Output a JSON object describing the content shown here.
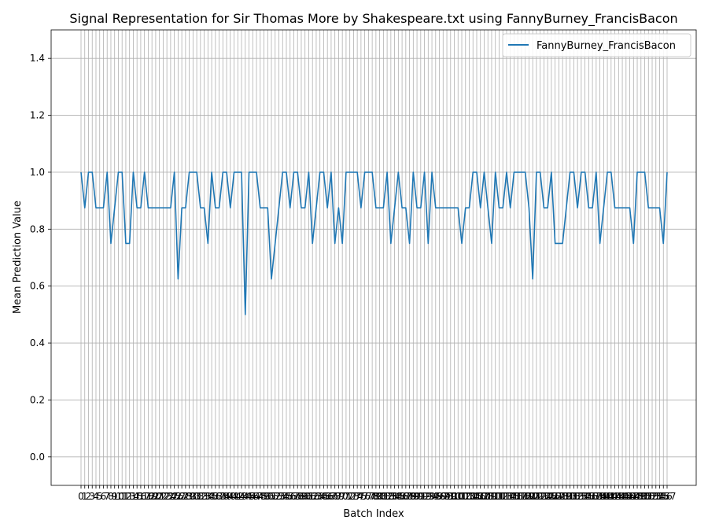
{
  "chart_data": {
    "type": "line",
    "title": "Signal Representation for Sir Thomas More by Shakespeare.txt using FannyBurney_FrancisBacon",
    "xlabel": "Batch Index",
    "ylabel": "Mean Prediction Value",
    "ylim": [
      -0.1,
      1.5
    ],
    "y_ticks": [
      0.0,
      0.2,
      0.4,
      0.6,
      0.8,
      1.0,
      1.2,
      1.4
    ],
    "y_tick_labels": [
      "0.0",
      "0.2",
      "0.4",
      "0.6",
      "0.8",
      "1.0",
      "1.2",
      "1.4"
    ],
    "x_range": [
      0,
      153
    ],
    "grid": true,
    "legend": "upper-right",
    "color": "#1f77b4",
    "series": [
      {
        "name": "FannyBurney_FrancisBacon",
        "values": [
          1.0,
          0.875,
          1.0,
          1.0,
          0.875,
          0.875,
          0.875,
          1.0,
          0.75,
          0.875,
          1.0,
          1.0,
          0.75,
          0.75,
          1.0,
          0.875,
          0.875,
          1.0,
          0.875,
          0.875,
          0.875,
          0.875,
          0.875,
          0.875,
          0.875,
          1.0,
          0.625,
          0.875,
          0.875,
          1.0,
          1.0,
          1.0,
          0.875,
          0.875,
          0.75,
          1.0,
          0.875,
          0.875,
          1.0,
          1.0,
          0.875,
          1.0,
          1.0,
          1.0,
          0.5,
          1.0,
          1.0,
          1.0,
          0.875,
          0.875,
          0.875,
          0.625,
          0.75,
          0.875,
          1.0,
          1.0,
          0.875,
          1.0,
          1.0,
          0.875,
          0.875,
          1.0,
          0.75,
          0.875,
          1.0,
          1.0,
          0.875,
          1.0,
          0.75,
          0.875,
          0.75,
          1.0,
          1.0,
          1.0,
          1.0,
          0.875,
          1.0,
          1.0,
          1.0,
          0.875,
          0.875,
          0.875,
          1.0,
          0.75,
          0.875,
          1.0,
          0.875,
          0.875,
          0.75,
          1.0,
          0.875,
          0.875,
          1.0,
          0.75,
          1.0,
          0.875,
          0.875,
          0.875,
          0.875,
          0.875,
          0.875,
          0.875,
          0.75,
          0.875,
          0.875,
          1.0,
          1.0,
          0.875,
          1.0,
          0.875,
          0.75,
          1.0,
          0.875,
          0.875,
          1.0,
          0.875,
          1.0,
          1.0,
          1.0,
          1.0,
          0.875,
          0.625,
          1.0,
          1.0,
          0.875,
          0.875,
          1.0,
          0.75,
          0.75,
          0.75,
          0.875,
          1.0,
          1.0,
          0.875,
          1.0,
          1.0,
          0.875,
          0.875,
          1.0,
          0.75,
          0.875,
          1.0,
          1.0,
          0.875,
          0.875,
          0.875,
          0.875,
          0.875,
          0.75,
          1.0,
          1.0,
          1.0,
          0.875,
          0.875,
          0.875,
          0.875,
          0.75,
          1.0
        ]
      }
    ]
  }
}
